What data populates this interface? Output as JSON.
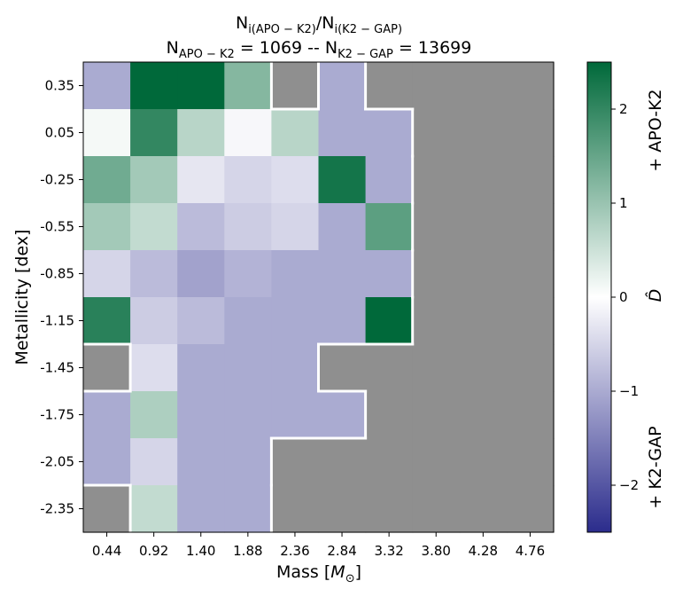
{
  "chart_data": {
    "type": "heatmap",
    "title_line1": {
      "lead": "N",
      "sub1": "i(APO − K2)",
      "slash": "/N",
      "sub2": "i(K2 − GAP)"
    },
    "title_line2": {
      "lead": "N",
      "sub1": "APO − K2",
      "mid": " = 1069 -- N",
      "sub2": "K2 − GAP",
      "tail": " = 13699"
    },
    "xlabel": "Mass [",
    "xlabel_math": "M",
    "xlabel_sub": "⊙",
    "xlabel_close": "]",
    "ylabel": "Metallicity [dex]",
    "x_ticks": [
      "0.44",
      "0.92",
      "1.40",
      "1.88",
      "2.36",
      "2.84",
      "3.32",
      "3.80",
      "4.28",
      "4.76"
    ],
    "y_ticks": [
      "0.35",
      "0.05",
      "-0.25",
      "-0.55",
      "-0.85",
      "-1.15",
      "-1.45",
      "-1.75",
      "-2.05",
      "-2.35"
    ],
    "colorbar": {
      "range": [
        -2.5,
        2.5
      ],
      "ticks": [
        "−2",
        "−1",
        "0",
        "1",
        "2"
      ],
      "tick_values": [
        -2,
        -1,
        0,
        1,
        2
      ],
      "label": "D̂",
      "top_label": "+ APO-K2",
      "bottom_label": "+ K2-GAP",
      "colors": {
        "low": "#2b2c8c",
        "mid": "#ffffff",
        "high": "#00693a",
        "missing": "#8f8f8f",
        "boundary": "#ffffff"
      }
    },
    "values": [
      [
        -1.0,
        2.5,
        2.5,
        1.2,
        null,
        -1.0,
        null,
        null,
        null,
        null
      ],
      [
        0.1,
        2.0,
        0.7,
        -0.1,
        0.7,
        -1.0,
        -1.0,
        null,
        null,
        null
      ],
      [
        1.4,
        0.9,
        -0.3,
        -0.5,
        -0.4,
        2.3,
        -1.0,
        null,
        null,
        null
      ],
      [
        0.9,
        0.6,
        -0.8,
        -0.6,
        -0.5,
        -1.0,
        1.6,
        null,
        null,
        null
      ],
      [
        -0.5,
        -0.8,
        -1.1,
        -0.9,
        -1.0,
        -1.0,
        -1.0,
        null,
        null,
        null
      ],
      [
        2.1,
        -0.6,
        -0.8,
        -1.0,
        -1.0,
        -1.0,
        2.5,
        null,
        null,
        null
      ],
      [
        null,
        -0.4,
        -1.0,
        -1.0,
        -1.0,
        null,
        null,
        null,
        null,
        null
      ],
      [
        -1.0,
        0.8,
        -1.0,
        -1.0,
        -1.0,
        -1.0,
        null,
        null,
        null,
        null
      ],
      [
        -1.0,
        -0.5,
        -1.0,
        -1.0,
        null,
        null,
        null,
        null,
        null,
        null
      ],
      [
        null,
        0.6,
        -1.0,
        -1.0,
        null,
        null,
        null,
        null,
        null,
        null
      ]
    ]
  }
}
